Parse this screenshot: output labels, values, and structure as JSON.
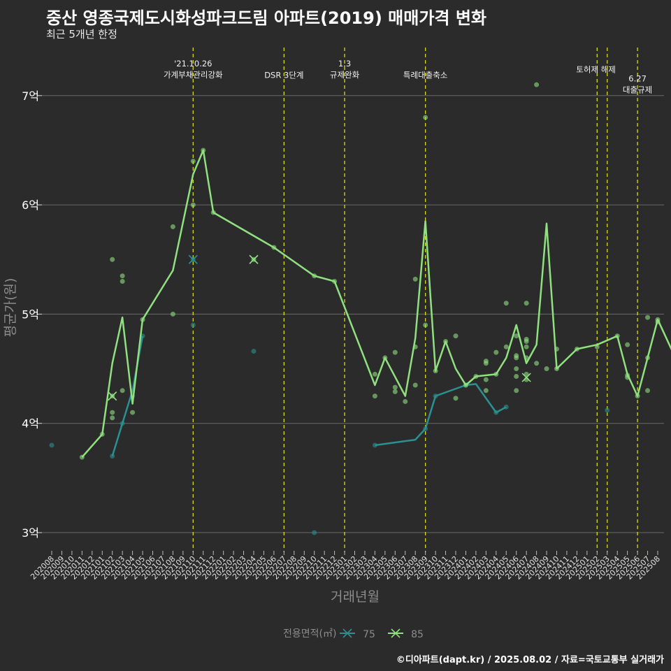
{
  "title": "중산 영종국제도시화성파크드림 아파트(2019) 매매가격 변화",
  "subtitle": "최근 5개년 한정",
  "caption": "©디아파트(dapt.kr) / 2025.08.02 / 자료=국토교통부 실거래가",
  "colors": {
    "background": "#2b2b2b",
    "grid": "#6a6a6a",
    "series75": "#2a9090",
    "series85": "#90e080",
    "vline": "#d8d820",
    "text": "#ffffff",
    "axis_title": "#8c8c8c"
  },
  "chart_data": {
    "type": "line",
    "xlabel": "거래년월",
    "ylabel": "평균가(원)",
    "x": [
      "202008",
      "202009",
      "202010",
      "202011",
      "202012",
      "202101",
      "202102",
      "202103",
      "202104",
      "202105",
      "202106",
      "202107",
      "202108",
      "202109",
      "202110",
      "202111",
      "202112",
      "202201",
      "202202",
      "202203",
      "202204",
      "202205",
      "202206",
      "202207",
      "202208",
      "202209",
      "202210",
      "202211",
      "202212",
      "202301",
      "202302",
      "202303",
      "202304",
      "202305",
      "202306",
      "202307",
      "202308",
      "202309",
      "202310",
      "202311",
      "202312",
      "202401",
      "202402",
      "202403",
      "202404",
      "202405",
      "202406",
      "202407",
      "202408",
      "202409",
      "202410",
      "202411",
      "202412",
      "202501",
      "202502",
      "202503",
      "202504",
      "202505",
      "202506",
      "202507",
      "202508"
    ],
    "yticks": [
      3,
      4,
      5,
      6,
      7
    ],
    "ytick_labels": [
      "3억",
      "4억",
      "5억",
      "6억",
      "7억"
    ],
    "ylim": [
      2.8,
      7.45
    ],
    "grid": true,
    "legend_title": "전용면적(㎡)",
    "legend_position": "bottom",
    "series": [
      {
        "name": "75",
        "color": "#2a9090",
        "line": [
          [
            6,
            3.7
          ],
          [
            7,
            4.0
          ],
          [
            8,
            4.3
          ],
          [
            9,
            4.8
          ],
          [
            null,
            null
          ],
          [
            32,
            3.8
          ],
          [
            36,
            3.85
          ],
          [
            37,
            3.95
          ],
          [
            38,
            4.25
          ],
          [
            41,
            4.35
          ],
          [
            42,
            4.36
          ],
          [
            44,
            4.1
          ],
          [
            45,
            4.15
          ]
        ],
        "points": [
          [
            0,
            3.8
          ],
          [
            6,
            3.7
          ],
          [
            7,
            4.0
          ],
          [
            8,
            4.25
          ],
          [
            9,
            4.8
          ],
          [
            14,
            5.5
          ],
          [
            14,
            4.9
          ],
          [
            20,
            4.66
          ],
          [
            26,
            3.0
          ],
          [
            32,
            3.8
          ],
          [
            37,
            3.95
          ],
          [
            38,
            4.25
          ],
          [
            41,
            4.35
          ],
          [
            44,
            4.1
          ],
          [
            45,
            4.15
          ],
          [
            55,
            4.12
          ]
        ],
        "crosses": [
          [
            14,
            5.5
          ]
        ]
      },
      {
        "name": "85",
        "color": "#90e080",
        "line": [
          [
            3,
            3.69
          ],
          [
            5,
            3.9
          ],
          [
            6,
            4.55
          ],
          [
            7,
            4.97
          ],
          [
            8,
            4.18
          ],
          [
            9,
            4.95
          ],
          [
            12,
            5.4
          ],
          [
            14,
            6.28
          ],
          [
            15,
            6.5
          ],
          [
            16,
            5.93
          ],
          [
            22,
            5.61
          ],
          [
            26,
            5.35
          ],
          [
            28,
            5.3
          ],
          [
            32,
            4.35
          ],
          [
            33,
            4.6
          ],
          [
            35,
            4.25
          ],
          [
            36,
            4.78
          ],
          [
            37,
            5.85
          ],
          [
            38,
            4.48
          ],
          [
            39,
            4.75
          ],
          [
            40,
            4.5
          ],
          [
            41,
            4.35
          ],
          [
            42,
            4.43
          ],
          [
            44,
            4.45
          ],
          [
            45,
            4.6
          ],
          [
            46,
            4.9
          ],
          [
            47,
            4.55
          ],
          [
            48,
            4.72
          ],
          [
            49,
            5.83
          ],
          [
            50,
            4.5
          ],
          [
            52,
            4.68
          ],
          [
            54,
            4.72
          ],
          [
            56,
            4.8
          ],
          [
            57,
            4.45
          ],
          [
            58,
            4.25
          ],
          [
            60,
            4.95
          ],
          [
            62,
            4.55
          ]
        ],
        "points": [
          [
            3,
            3.69
          ],
          [
            5,
            3.9
          ],
          [
            6,
            5.5
          ],
          [
            6,
            4.25
          ],
          [
            6,
            4.1
          ],
          [
            6,
            4.05
          ],
          [
            7,
            5.35
          ],
          [
            7,
            5.3
          ],
          [
            7,
            4.3
          ],
          [
            8,
            4.1
          ],
          [
            9,
            4.95
          ],
          [
            12,
            5.8
          ],
          [
            12,
            5.0
          ],
          [
            14,
            6.4
          ],
          [
            14,
            6.0
          ],
          [
            15,
            6.5
          ],
          [
            16,
            5.93
          ],
          [
            20,
            5.5
          ],
          [
            22,
            5.61
          ],
          [
            26,
            5.35
          ],
          [
            28,
            5.3
          ],
          [
            32,
            4.45
          ],
          [
            32,
            4.25
          ],
          [
            33,
            4.6
          ],
          [
            34,
            4.65
          ],
          [
            34,
            4.33
          ],
          [
            34,
            4.29
          ],
          [
            35,
            4.2
          ],
          [
            36,
            5.32
          ],
          [
            36,
            4.7
          ],
          [
            36,
            4.35
          ],
          [
            37,
            6.8
          ],
          [
            37,
            4.9
          ],
          [
            38,
            4.48
          ],
          [
            39,
            4.75
          ],
          [
            40,
            4.8
          ],
          [
            40,
            4.23
          ],
          [
            41,
            4.35
          ],
          [
            42,
            4.43
          ],
          [
            43,
            4.55
          ],
          [
            43,
            4.57
          ],
          [
            43,
            4.4
          ],
          [
            43,
            4.3
          ],
          [
            44,
            4.65
          ],
          [
            44,
            4.45
          ],
          [
            45,
            5.1
          ],
          [
            45,
            4.7
          ],
          [
            46,
            4.8
          ],
          [
            46,
            4.62
          ],
          [
            46,
            4.6
          ],
          [
            46,
            4.5
          ],
          [
            46,
            4.43
          ],
          [
            46,
            4.3
          ],
          [
            47,
            5.1
          ],
          [
            47,
            4.77
          ],
          [
            47,
            4.75
          ],
          [
            47,
            4.7
          ],
          [
            47,
            4.6
          ],
          [
            47,
            4.45
          ],
          [
            47,
            4.4
          ],
          [
            48,
            7.1
          ],
          [
            48,
            4.55
          ],
          [
            49,
            4.5
          ],
          [
            50,
            4.68
          ],
          [
            50,
            4.5
          ],
          [
            52,
            4.68
          ],
          [
            54,
            4.7
          ],
          [
            56,
            4.8
          ],
          [
            57,
            4.72
          ],
          [
            57,
            4.44
          ],
          [
            57,
            4.42
          ],
          [
            58,
            4.25
          ],
          [
            59,
            4.97
          ],
          [
            59,
            4.6
          ],
          [
            59,
            4.3
          ],
          [
            60,
            4.95
          ],
          [
            60,
            4.93
          ],
          [
            62,
            4.55
          ]
        ],
        "crosses": [
          [
            6,
            4.25
          ],
          [
            20,
            5.5
          ],
          [
            47,
            4.42
          ]
        ]
      }
    ],
    "events": [
      {
        "x": 14,
        "label": "'21.10.26\n가계부채관리강화",
        "level": 1
      },
      {
        "x": 23,
        "label": "DSR 3단계",
        "level": 2
      },
      {
        "x": 29,
        "label": "1.3\n규제완화",
        "level": 1
      },
      {
        "x": 37,
        "label": "특례대출축소",
        "level": 2
      },
      {
        "x": 54,
        "label": "토허제 해제",
        "level": 1.5,
        "anchor": "start"
      },
      {
        "x": 55,
        "label": "",
        "level": 0
      },
      {
        "x": 58,
        "label": "6.27\n대출규제",
        "level": 2.3
      }
    ]
  }
}
